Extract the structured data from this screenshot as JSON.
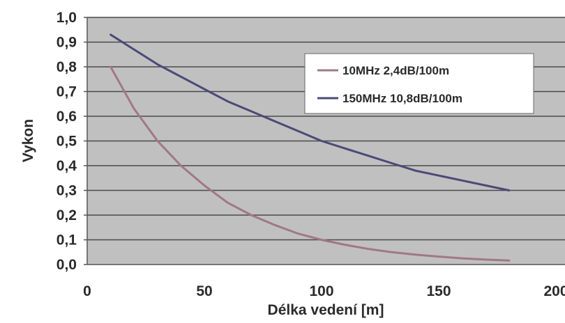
{
  "chart_data": {
    "type": "line",
    "xlabel": "Délka vedení [m]",
    "ylabel": "Vykon",
    "xlim": [
      0,
      200
    ],
    "ylim": [
      0.0,
      1.0
    ],
    "x_ticks": [
      "0",
      "50",
      "100",
      "150",
      "200"
    ],
    "y_ticks": [
      "0,0",
      "0,1",
      "0,2",
      "0,3",
      "0,4",
      "0,5",
      "0,6",
      "0,7",
      "0,8",
      "0,9",
      "1,0"
    ],
    "grid": true,
    "legend_position": "top-right",
    "plot_background": "#c0c0c0",
    "series": [
      {
        "name": "10MHz 2,4dB/100m",
        "color": "#a07884",
        "x": [
          10,
          20,
          30,
          40,
          50,
          60,
          70,
          80,
          90,
          100,
          110,
          120,
          130,
          140,
          150,
          160,
          170,
          180
        ],
        "y": [
          0.8,
          0.63,
          0.5,
          0.4,
          0.32,
          0.25,
          0.2,
          0.16,
          0.125,
          0.1,
          0.08,
          0.063,
          0.05,
          0.04,
          0.032,
          0.025,
          0.02,
          0.016
        ]
      },
      {
        "name": "150MHz 10,8dB/100m",
        "color": "#4a4a78",
        "x": [
          10,
          20,
          30,
          40,
          50,
          60,
          70,
          80,
          90,
          100,
          110,
          120,
          130,
          140,
          150,
          160,
          170,
          180
        ],
        "y": [
          0.93,
          0.87,
          0.81,
          0.76,
          0.71,
          0.66,
          0.62,
          0.58,
          0.54,
          0.5,
          0.47,
          0.44,
          0.41,
          0.38,
          0.36,
          0.34,
          0.32,
          0.3
        ]
      }
    ]
  }
}
